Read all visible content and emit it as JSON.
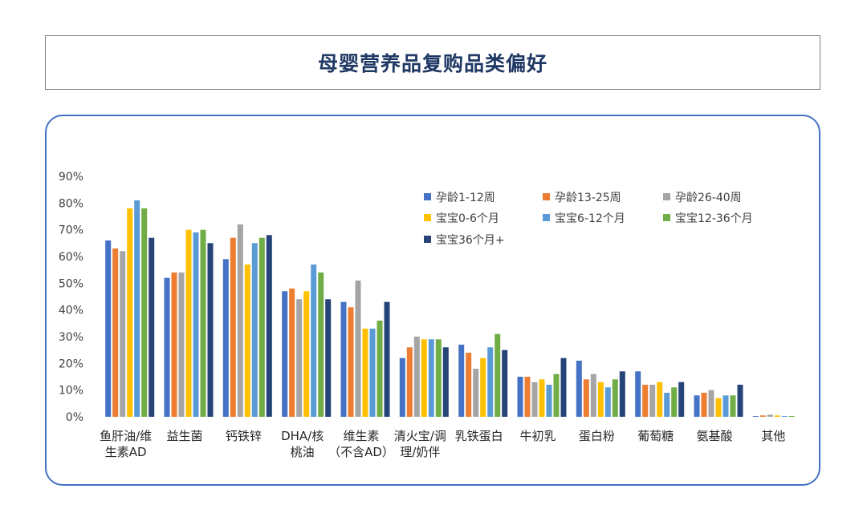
{
  "title": "母婴营养品复购品类偏好",
  "chart_data": {
    "type": "bar",
    "title": "",
    "ylim": [
      0,
      90
    ],
    "y_ticks": [
      "0%",
      "10%",
      "20%",
      "30%",
      "40%",
      "50%",
      "60%",
      "70%",
      "80%",
      "90%"
    ],
    "categories": [
      [
        "鱼肝油/维",
        "生素AD"
      ],
      [
        "益生菌"
      ],
      [
        "钙铁锌"
      ],
      [
        "DHA/核",
        "桃油"
      ],
      [
        "维生素",
        "（不含AD）"
      ],
      [
        "清火宝/调",
        "理/奶伴"
      ],
      [
        "乳铁蛋白"
      ],
      [
        "牛初乳"
      ],
      [
        "蛋白粉"
      ],
      [
        "葡萄糖"
      ],
      [
        "氨基酸"
      ],
      [
        "其他"
      ]
    ],
    "series": [
      {
        "name": "孕龄1-12周",
        "color": "#4472c4",
        "values": [
          66,
          52,
          59,
          47,
          43,
          22,
          27,
          15,
          21,
          17,
          8,
          0.3
        ]
      },
      {
        "name": "孕龄13-25周",
        "color": "#ed7d31",
        "values": [
          63,
          54,
          67,
          48,
          41,
          26,
          24,
          15,
          14,
          12,
          9,
          0.5
        ]
      },
      {
        "name": "孕龄26-40周",
        "color": "#a5a5a5",
        "values": [
          62,
          54,
          72,
          44,
          51,
          30,
          18,
          13,
          16,
          12,
          10,
          0.8
        ]
      },
      {
        "name": "宝宝0-6个月",
        "color": "#ffc000",
        "values": [
          78,
          70,
          57,
          47,
          33,
          29,
          22,
          14,
          13,
          13,
          7,
          0.5
        ]
      },
      {
        "name": "宝宝6-12个月",
        "color": "#5b9bd5",
        "values": [
          81,
          69,
          65,
          57,
          33,
          29,
          26,
          12,
          11,
          9,
          8,
          0.3
        ]
      },
      {
        "name": "宝宝12-36个月",
        "color": "#70ad47",
        "values": [
          78,
          70,
          67,
          54,
          36,
          29,
          31,
          16,
          14,
          11,
          8,
          0.3
        ]
      },
      {
        "name": "宝宝36个月+",
        "color": "#264478",
        "values": [
          67,
          65,
          68,
          44,
          43,
          26,
          25,
          22,
          17,
          13,
          12,
          0
        ]
      }
    ],
    "legend_position": "top-right",
    "grid": false
  }
}
